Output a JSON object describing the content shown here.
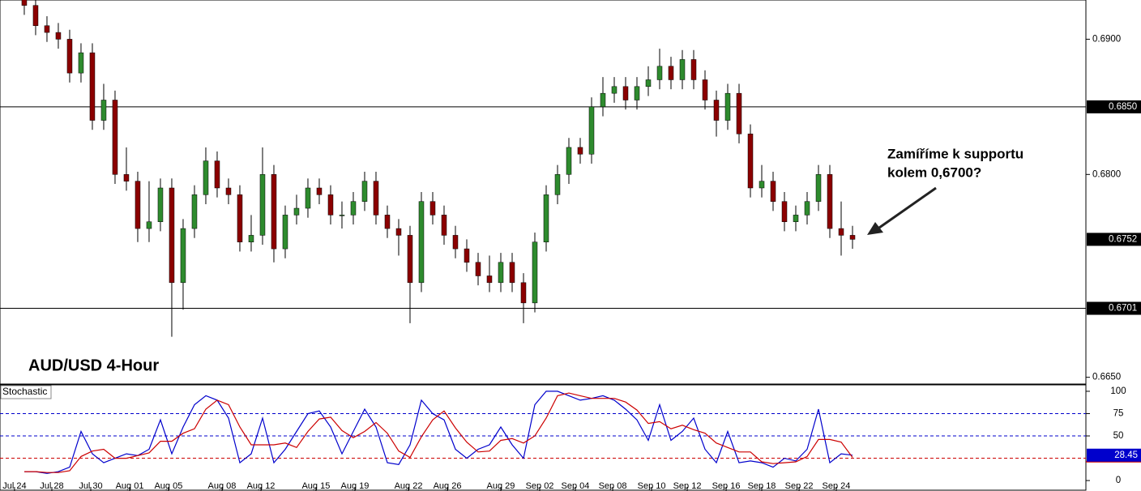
{
  "chart_data": [
    {
      "type": "candlestick",
      "title": "AUD/USD 4-Hour",
      "annotation": [
        "Zamíříme k supportu",
        "kolem 0,6700?"
      ],
      "up_color": "#2e8b2e",
      "down_color": "#8b0000",
      "xlim": [
        -2.14,
        93.57
      ],
      "ylim": [
        0.6645,
        0.6929
      ],
      "yticks": [
        {
          "value": 0.665,
          "label": "0.6650"
        },
        {
          "value": 0.68,
          "label": "0.6800"
        },
        {
          "value": 0.69,
          "label": "0.6900"
        }
      ],
      "levels": [
        {
          "value": 0.685,
          "label": "0.6850"
        },
        {
          "value": 0.6701,
          "label": "0.6701"
        }
      ],
      "price_marker": {
        "value": 0.6752,
        "label": "0.6752"
      },
      "open": [
        0.693,
        0.6925,
        0.691,
        0.6905,
        0.69,
        0.6875,
        0.689,
        0.684,
        0.6855,
        0.68,
        0.6795,
        0.676,
        0.6765,
        0.679,
        0.672,
        0.676,
        0.6785,
        0.681,
        0.679,
        0.6785,
        0.675,
        0.6755,
        0.68,
        0.6745,
        0.677,
        0.6775,
        0.679,
        0.6785,
        0.677,
        0.677,
        0.678,
        0.6795,
        0.677,
        0.676,
        0.6755,
        0.672,
        0.678,
        0.677,
        0.6755,
        0.6745,
        0.6735,
        0.6725,
        0.672,
        0.6735,
        0.672,
        0.6705,
        0.675,
        0.6785,
        0.68,
        0.682,
        0.6815,
        0.685,
        0.686,
        0.6865,
        0.6855,
        0.6865,
        0.687,
        0.688,
        0.687,
        0.6885,
        0.687,
        0.6855,
        0.684,
        0.686,
        0.683,
        0.679,
        0.6795,
        0.678,
        0.6765,
        0.677,
        0.678,
        0.68,
        0.676,
        0.6755
      ],
      "high": [
        0.6937,
        0.6932,
        0.6917,
        0.6912,
        0.6907,
        0.6897,
        0.6897,
        0.6867,
        0.6862,
        0.682,
        0.6802,
        0.6795,
        0.6797,
        0.6797,
        0.6767,
        0.6792,
        0.682,
        0.6817,
        0.6797,
        0.6792,
        0.677,
        0.682,
        0.6807,
        0.6777,
        0.6785,
        0.6797,
        0.6797,
        0.6792,
        0.678,
        0.6787,
        0.6802,
        0.6802,
        0.6777,
        0.6767,
        0.6762,
        0.6787,
        0.6787,
        0.6777,
        0.6762,
        0.6752,
        0.6742,
        0.674,
        0.6742,
        0.6742,
        0.6727,
        0.6757,
        0.6792,
        0.6807,
        0.6827,
        0.6827,
        0.6857,
        0.6872,
        0.6872,
        0.6872,
        0.6872,
        0.688,
        0.6893,
        0.6887,
        0.6892,
        0.6892,
        0.6877,
        0.6862,
        0.6867,
        0.6867,
        0.6837,
        0.6807,
        0.6802,
        0.6787,
        0.6777,
        0.6787,
        0.6807,
        0.6807,
        0.678,
        0.6762
      ],
      "low": [
        0.6918,
        0.6903,
        0.6898,
        0.6893,
        0.6868,
        0.6868,
        0.6833,
        0.6833,
        0.6793,
        0.6788,
        0.675,
        0.675,
        0.6758,
        0.668,
        0.67,
        0.6753,
        0.6778,
        0.6783,
        0.6778,
        0.6743,
        0.6743,
        0.6748,
        0.6735,
        0.6738,
        0.6763,
        0.6768,
        0.6778,
        0.6763,
        0.676,
        0.6763,
        0.6773,
        0.6763,
        0.6753,
        0.674,
        0.669,
        0.6713,
        0.6763,
        0.6748,
        0.6738,
        0.6728,
        0.6718,
        0.6713,
        0.6713,
        0.6713,
        0.669,
        0.6698,
        0.6743,
        0.6778,
        0.6793,
        0.6808,
        0.6808,
        0.6843,
        0.6853,
        0.6848,
        0.6848,
        0.6858,
        0.6863,
        0.6863,
        0.6863,
        0.6863,
        0.6848,
        0.6828,
        0.6833,
        0.6823,
        0.6783,
        0.6783,
        0.6773,
        0.6758,
        0.6758,
        0.6763,
        0.6773,
        0.6753,
        0.674,
        0.6745
      ],
      "close": [
        0.6925,
        0.691,
        0.6905,
        0.69,
        0.6875,
        0.689,
        0.684,
        0.6855,
        0.68,
        0.6795,
        0.676,
        0.6765,
        0.679,
        0.672,
        0.676,
        0.6785,
        0.681,
        0.679,
        0.6785,
        0.675,
        0.6755,
        0.68,
        0.6745,
        0.677,
        0.6775,
        0.679,
        0.6785,
        0.677,
        0.677,
        0.678,
        0.6795,
        0.677,
        0.676,
        0.6755,
        0.672,
        0.678,
        0.677,
        0.6755,
        0.6745,
        0.6735,
        0.6725,
        0.672,
        0.6735,
        0.672,
        0.6705,
        0.675,
        0.6785,
        0.68,
        0.682,
        0.6815,
        0.685,
        0.686,
        0.6865,
        0.6855,
        0.6865,
        0.687,
        0.688,
        0.687,
        0.6885,
        0.687,
        0.6855,
        0.684,
        0.686,
        0.683,
        0.679,
        0.6795,
        0.678,
        0.6765,
        0.677,
        0.678,
        0.68,
        0.676,
        0.6755,
        0.6752
      ]
    },
    {
      "type": "line",
      "title": "Stochastic",
      "xlim": [
        -2.14,
        93.57
      ],
      "ylim": [
        -10.8,
        107.2
      ],
      "yticks": [
        0,
        50,
        75,
        100
      ],
      "levels": [
        {
          "value": 25,
          "color": "#cc0000"
        },
        {
          "value": 50,
          "color": "#0000cc"
        },
        {
          "value": 75,
          "color": "#0000cc"
        }
      ],
      "xticks": [
        {
          "value": -0.86,
          "label": "Jul 24"
        },
        {
          "value": 2.43,
          "label": "Jul 28"
        },
        {
          "value": 5.86,
          "label": "Jul 30"
        },
        {
          "value": 9.29,
          "label": "Aug 01"
        },
        {
          "value": 12.71,
          "label": "Aug 05"
        },
        {
          "value": 17.43,
          "label": "Aug 08"
        },
        {
          "value": 20.86,
          "label": "Aug 12"
        },
        {
          "value": 25.71,
          "label": "Aug 15"
        },
        {
          "value": 29.14,
          "label": "Aug 19"
        },
        {
          "value": 33.86,
          "label": "Aug 22"
        },
        {
          "value": 37.29,
          "label": "Aug 26"
        },
        {
          "value": 42,
          "label": "Aug 29"
        },
        {
          "value": 45.43,
          "label": "Sep 02"
        },
        {
          "value": 48.57,
          "label": "Sep 04"
        },
        {
          "value": 51.86,
          "label": "Sep 08"
        },
        {
          "value": 55.29,
          "label": "Sep 10"
        },
        {
          "value": 58.43,
          "label": "Sep 12"
        },
        {
          "value": 61.86,
          "label": "Sep 16"
        },
        {
          "value": 65,
          "label": "Sep 18"
        },
        {
          "value": 68.29,
          "label": "Sep 22"
        },
        {
          "value": 71.57,
          "label": "Sep 24"
        }
      ],
      "series": [
        {
          "color": "#0000cc",
          "values": [
            10,
            10,
            8,
            10,
            15,
            55,
            30,
            20,
            25,
            30,
            28,
            35,
            68,
            30,
            60,
            85,
            95,
            90,
            70,
            20,
            30,
            70,
            20,
            35,
            55,
            75,
            78,
            60,
            30,
            55,
            80,
            60,
            20,
            18,
            40,
            90,
            75,
            68,
            35,
            25,
            35,
            40,
            60,
            40,
            25,
            85,
            100,
            100,
            95,
            90,
            92,
            95,
            90,
            80,
            68,
            45,
            85,
            45,
            55,
            70,
            35,
            20,
            55,
            20,
            22,
            20,
            15,
            25,
            22,
            35,
            80,
            20,
            30,
            28.45
          ]
        },
        {
          "color": "#cc0000",
          "values": [
            10,
            10,
            9,
            9,
            11,
            27,
            33,
            35,
            25,
            25,
            28,
            31,
            44,
            44,
            53,
            58,
            80,
            90,
            85,
            60,
            40,
            40,
            40,
            42,
            37,
            55,
            69,
            71,
            56,
            48,
            55,
            65,
            53,
            33,
            26,
            49,
            68,
            78,
            59,
            43,
            32,
            33,
            45,
            47,
            42,
            50,
            70,
            95,
            98,
            95,
            92,
            92,
            92,
            88,
            79,
            64,
            66,
            58,
            62,
            57,
            53,
            42,
            37,
            32,
            32,
            21,
            19,
            20,
            21,
            27,
            46,
            46,
            43,
            26
          ]
        }
      ]
    }
  ]
}
